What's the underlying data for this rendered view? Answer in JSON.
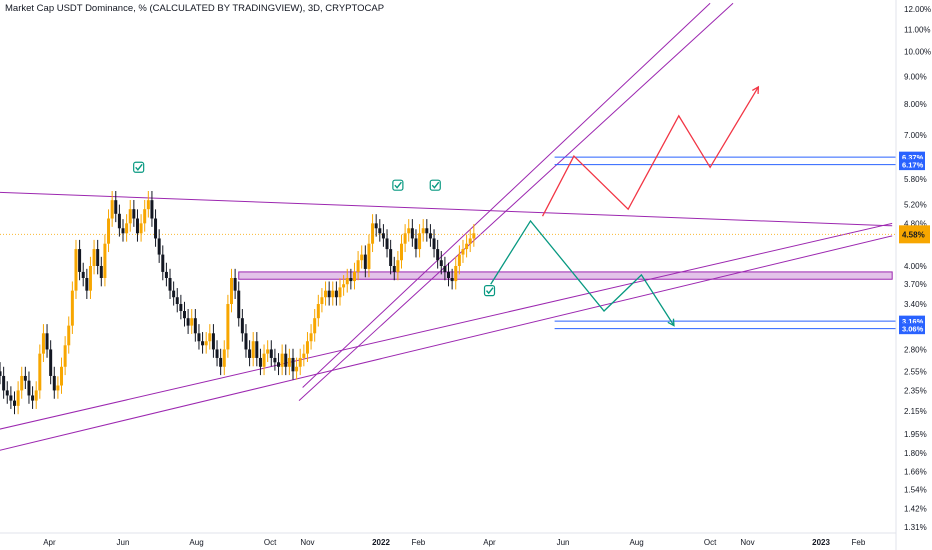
{
  "chart_data": {
    "type": "candlestick",
    "title": "Market Cap USDT Dominance, % (CALCULATED BY TRADINGVIEW), 3D, CRYPTOCAP",
    "y_axis": {
      "scale": "log",
      "ticks": [
        "12.00%",
        "11.00%",
        "10.00%",
        "9.00%",
        "8.00%",
        "7.00%",
        "5.80%",
        "5.20%",
        "4.80%",
        "4.00%",
        "3.70%",
        "3.40%",
        "2.80%",
        "2.55%",
        "2.35%",
        "2.15%",
        "1.95%",
        "1.80%",
        "1.66%",
        "1.54%",
        "1.42%",
        "1.31%"
      ],
      "tick_values": [
        12.0,
        11.0,
        10.0,
        9.0,
        8.0,
        7.0,
        5.8,
        5.2,
        4.8,
        4.0,
        3.7,
        3.4,
        2.8,
        2.55,
        2.35,
        2.15,
        1.95,
        1.8,
        1.66,
        1.54,
        1.42,
        1.31
      ],
      "range": [
        1.28,
        12.3
      ]
    },
    "x_axis": {
      "ticks": [
        {
          "label": "Apr",
          "date": "2021-04-01",
          "bold": false
        },
        {
          "label": "Jun",
          "date": "2021-06-01",
          "bold": false
        },
        {
          "label": "Aug",
          "date": "2021-08-01",
          "bold": false
        },
        {
          "label": "Oct",
          "date": "2021-10-01",
          "bold": false
        },
        {
          "label": "Nov",
          "date": "2021-11-01",
          "bold": false
        },
        {
          "label": "2022",
          "date": "2022-01-01",
          "bold": true
        },
        {
          "label": "Feb",
          "date": "2022-02-01",
          "bold": false
        },
        {
          "label": "Apr",
          "date": "2022-04-01",
          "bold": false
        },
        {
          "label": "Jun",
          "date": "2022-06-01",
          "bold": false
        },
        {
          "label": "Aug",
          "date": "2022-08-01",
          "bold": false
        },
        {
          "label": "Oct",
          "date": "2022-10-01",
          "bold": false
        },
        {
          "label": "Nov",
          "date": "2022-11-01",
          "bold": false
        },
        {
          "label": "2023",
          "date": "2023-01-01",
          "bold": true
        },
        {
          "label": "Feb",
          "date": "2023-02-01",
          "bold": false
        }
      ]
    },
    "current_price_label": "4.58%",
    "price_labels": [
      {
        "text": "6.37%",
        "value": 6.37,
        "color": "#2962ff"
      },
      {
        "text": "6.17%",
        "value": 6.17,
        "color": "#2962ff"
      },
      {
        "text": "3.16%",
        "value": 3.16,
        "color": "#2962ff"
      },
      {
        "text": "3.06%",
        "value": 3.06,
        "color": "#2962ff"
      }
    ],
    "candles_close": [
      2.75,
      2.6,
      2.4,
      2.3,
      2.45,
      2.5,
      2.35,
      2.25,
      2.4,
      2.55,
      2.5,
      2.35,
      2.3,
      2.25,
      2.2,
      2.35,
      2.5,
      2.45,
      2.3,
      2.25,
      2.35,
      2.75,
      3.0,
      2.8,
      2.5,
      2.35,
      2.4,
      2.6,
      2.85,
      3.1,
      3.6,
      4.3,
      3.9,
      3.8,
      3.6,
      4.0,
      4.3,
      4.0,
      3.8,
      4.4,
      4.9,
      5.3,
      5.0,
      4.7,
      4.6,
      4.8,
      5.1,
      4.9,
      4.6,
      4.8,
      5.1,
      5.3,
      4.9,
      4.5,
      4.2,
      3.9,
      3.8,
      3.6,
      3.5,
      3.4,
      3.3,
      3.2,
      3.1,
      3.2,
      3.0,
      2.9,
      2.85,
      2.9,
      3.0,
      2.8,
      2.7,
      2.6,
      2.8,
      3.4,
      3.8,
      3.6,
      3.2,
      3.0,
      2.8,
      2.7,
      2.9,
      2.7,
      2.6,
      2.75,
      2.8,
      2.7,
      2.65,
      2.6,
      2.75,
      2.6,
      2.7,
      2.55,
      2.6,
      2.7,
      2.75,
      2.9,
      3.0,
      3.2,
      3.4,
      3.5,
      3.6,
      3.5,
      3.6,
      3.5,
      3.65,
      3.7,
      3.8,
      3.75,
      3.9,
      4.1,
      4.2,
      3.95,
      4.4,
      4.8,
      4.7,
      4.6,
      4.5,
      4.3,
      4.0,
      3.9,
      4.1,
      4.4,
      4.6,
      4.7,
      4.5,
      4.3,
      4.6,
      4.7,
      4.6,
      4.5,
      4.3,
      4.1,
      4.0,
      3.9,
      3.8,
      3.75,
      4.0,
      4.2,
      4.3,
      4.4,
      4.5,
      4.6
    ],
    "trend_lines": [
      {
        "color": "#9c27b0",
        "from": {
          "date": "2021-02-01",
          "value": 5.5
        },
        "to": {
          "date": "2023-03-01",
          "value": 4.75
        }
      },
      {
        "color": "#9c27b0",
        "from": {
          "date": "2021-02-01",
          "value": 1.78
        },
        "to": {
          "date": "2023-03-01",
          "value": 4.55
        }
      },
      {
        "color": "#9c27b0",
        "from": {
          "date": "2021-02-01",
          "value": 1.95
        },
        "to": {
          "date": "2023-03-01",
          "value": 4.8
        }
      },
      {
        "color": "#9c27b0",
        "from": {
          "date": "2021-10-25",
          "value": 2.25
        },
        "to": {
          "date": "2022-10-20",
          "value": 12.3
        }
      },
      {
        "color": "#9c27b0",
        "from": {
          "date": "2021-10-28",
          "value": 2.38
        },
        "to": {
          "date": "2022-10-01",
          "value": 12.3
        }
      }
    ],
    "zones": [
      {
        "color": "#9c27b0",
        "from_date": "2021-09-05",
        "to_date": "2023-03-01",
        "low": 3.78,
        "high": 3.9
      }
    ],
    "horizontal_lines": [
      {
        "color": "#2962ff",
        "value": 6.37,
        "from_date": "2022-05-25",
        "to_date": "2023-03-01"
      },
      {
        "color": "#2962ff",
        "value": 6.17,
        "from_date": "2022-05-25",
        "to_date": "2023-03-01"
      },
      {
        "color": "#2962ff",
        "value": 3.16,
        "from_date": "2022-05-25",
        "to_date": "2023-03-01"
      },
      {
        "color": "#2962ff",
        "value": 3.06,
        "from_date": "2022-05-25",
        "to_date": "2023-03-01"
      }
    ],
    "projection_paths": [
      {
        "color": "#f23645",
        "points": [
          {
            "date": "2022-05-15",
            "value": 4.95
          },
          {
            "date": "2022-06-10",
            "value": 6.4
          },
          {
            "date": "2022-07-25",
            "value": 5.1
          },
          {
            "date": "2022-09-05",
            "value": 7.6
          },
          {
            "date": "2022-10-01",
            "value": 6.1
          },
          {
            "date": "2022-11-10",
            "value": 8.6
          }
        ]
      },
      {
        "color": "#089981",
        "points": [
          {
            "date": "2022-04-02",
            "value": 3.7
          },
          {
            "date": "2022-05-05",
            "value": 4.85
          },
          {
            "date": "2022-07-05",
            "value": 3.3
          },
          {
            "date": "2022-08-05",
            "value": 3.85
          },
          {
            "date": "2022-09-01",
            "value": 3.1
          }
        ]
      }
    ],
    "check_markers": [
      {
        "date": "2021-06-14",
        "value": 6.1
      },
      {
        "date": "2022-01-15",
        "value": 5.65
      },
      {
        "date": "2022-02-15",
        "value": 5.65
      },
      {
        "date": "2022-04-01",
        "value": 3.6
      }
    ],
    "grid": false,
    "price_line_color": "#f7a600",
    "candle_color": "#f7a600",
    "bear_color": "#131722"
  }
}
